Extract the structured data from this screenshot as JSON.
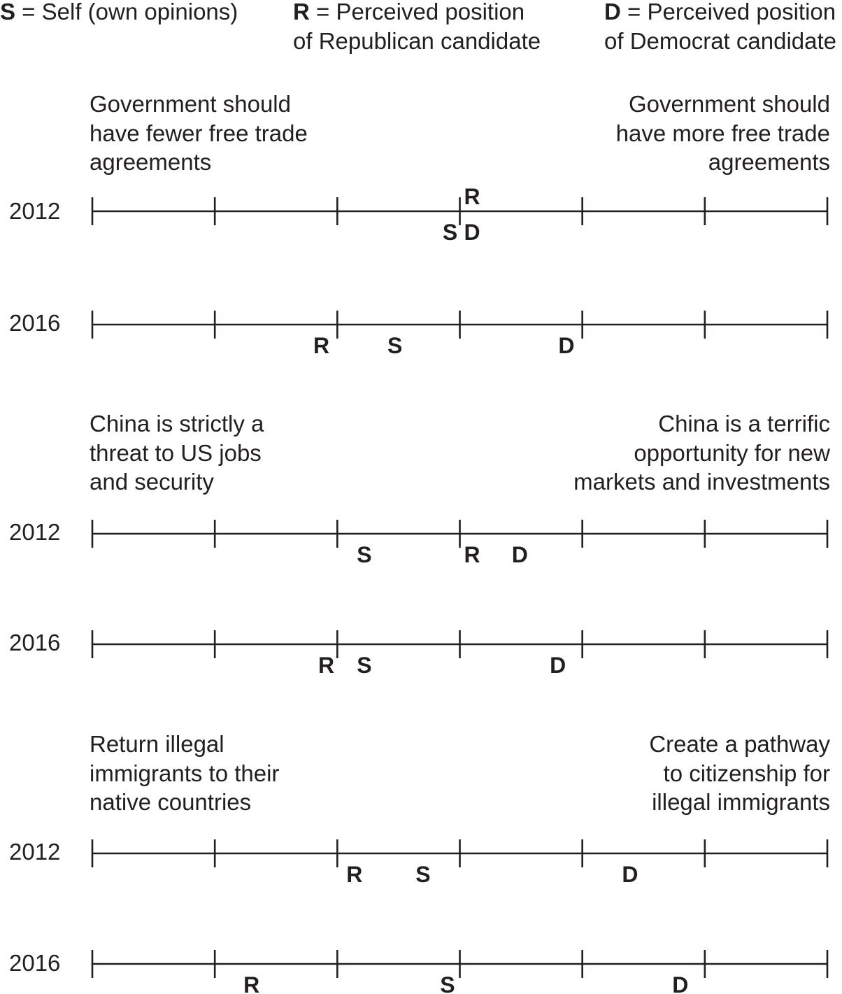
{
  "legend": [
    {
      "code": "S",
      "text": " = Self (own opinions)"
    },
    {
      "code": "R",
      "text": " = Perceived position",
      "text2": "of Republican candidate"
    },
    {
      "code": "D",
      "text": " = Perceived position",
      "text2": "of Democrat candidate"
    }
  ],
  "scale": {
    "min": 1,
    "max": 7,
    "ticks": [
      1,
      2,
      3,
      4,
      5,
      6,
      7
    ]
  },
  "issues": [
    {
      "left_label": [
        "Government should",
        "have fewer free trade",
        "agreements"
      ],
      "right_label": [
        "Government should",
        "have more free trade",
        "agreements"
      ],
      "rows": [
        {
          "year": "2012",
          "markers": [
            {
              "code": "S",
              "value": 3.92,
              "placement": "below"
            },
            {
              "code": "R",
              "value": 4.1,
              "placement": "above"
            },
            {
              "code": "D",
              "value": 4.1,
              "placement": "below"
            }
          ]
        },
        {
          "year": "2016",
          "markers": [
            {
              "code": "R",
              "value": 2.87,
              "placement": "below"
            },
            {
              "code": "S",
              "value": 3.47,
              "placement": "below"
            },
            {
              "code": "D",
              "value": 4.87,
              "placement": "below"
            }
          ]
        }
      ]
    },
    {
      "left_label": [
        "China is strictly a",
        "threat to US jobs",
        "and security"
      ],
      "right_label": [
        "China is a terrific",
        "opportunity for new",
        "markets and investments"
      ],
      "rows": [
        {
          "year": "2012",
          "markers": [
            {
              "code": "S",
              "value": 3.22,
              "placement": "below"
            },
            {
              "code": "R",
              "value": 4.1,
              "placement": "below"
            },
            {
              "code": "D",
              "value": 4.49,
              "placement": "below"
            }
          ]
        },
        {
          "year": "2016",
          "markers": [
            {
              "code": "R",
              "value": 2.91,
              "placement": "below"
            },
            {
              "code": "S",
              "value": 3.22,
              "placement": "below"
            },
            {
              "code": "D",
              "value": 4.8,
              "placement": "below"
            }
          ]
        }
      ]
    },
    {
      "left_label": [
        "Return illegal",
        "immigrants to their",
        "native countries"
      ],
      "right_label": [
        "Create a pathway",
        "to citizenship for",
        "illegal immigrants"
      ],
      "rows": [
        {
          "year": "2012",
          "markers": [
            {
              "code": "R",
              "value": 3.14,
              "placement": "below"
            },
            {
              "code": "S",
              "value": 3.7,
              "placement": "below"
            },
            {
              "code": "D",
              "value": 5.39,
              "placement": "below"
            }
          ]
        },
        {
          "year": "2016",
          "markers": [
            {
              "code": "R",
              "value": 2.3,
              "placement": "below"
            },
            {
              "code": "S",
              "value": 3.9,
              "placement": "below"
            },
            {
              "code": "D",
              "value": 5.8,
              "placement": "below"
            }
          ]
        }
      ]
    }
  ]
}
